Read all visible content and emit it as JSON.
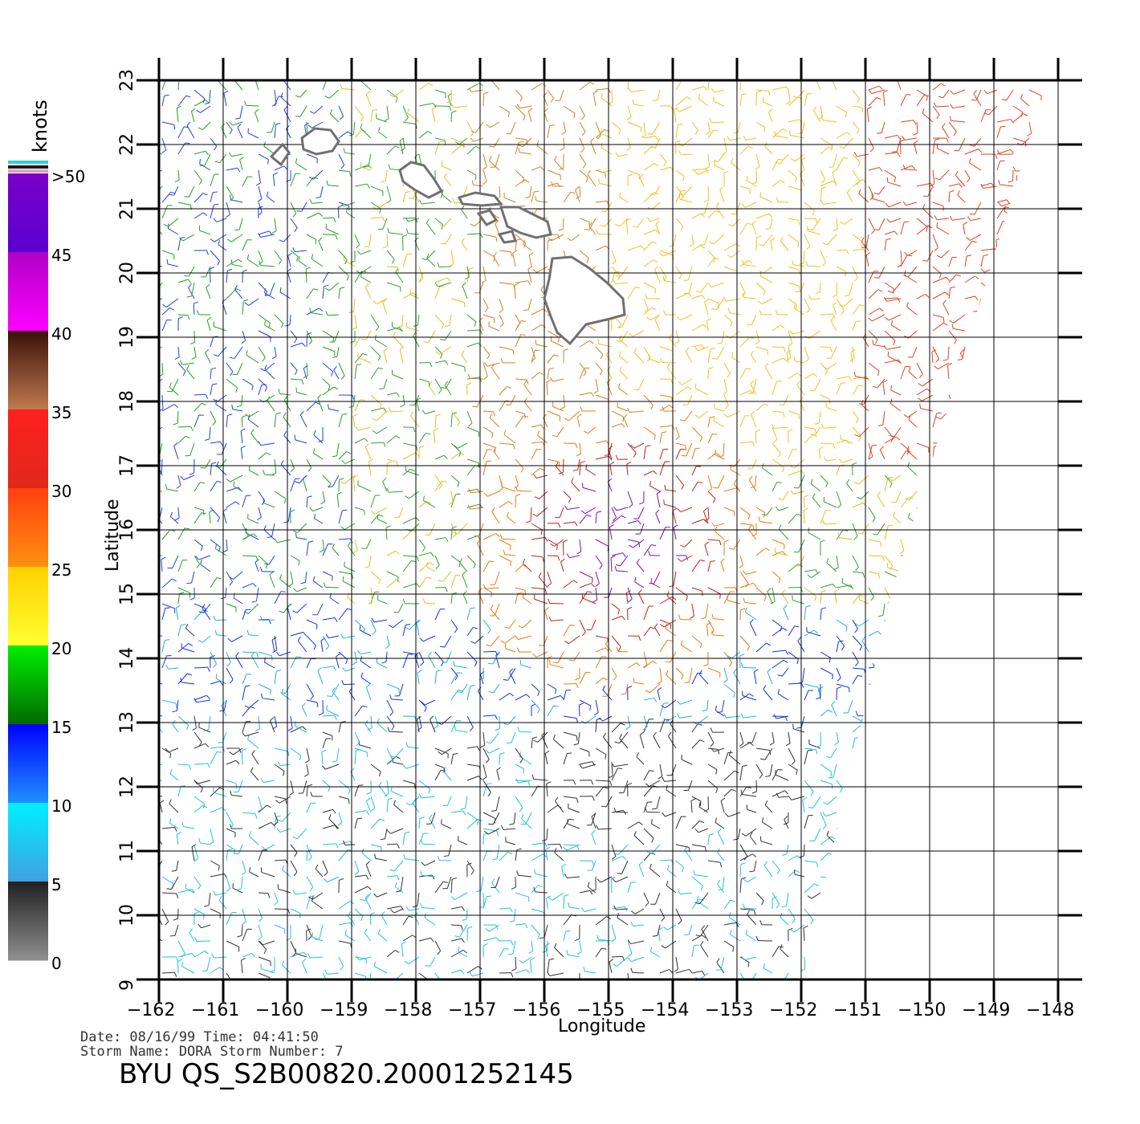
{
  "map": {
    "x_axis": {
      "title": "Longitude",
      "ticks": [
        "−162",
        "−161",
        "−160",
        "−159",
        "−158",
        "−157",
        "−156",
        "−155",
        "−154",
        "−153",
        "−152",
        "−151",
        "−150",
        "−149",
        "−148"
      ],
      "range": [
        -162,
        -148
      ]
    },
    "y_axis": {
      "title": "Latitude",
      "ticks": [
        "9",
        "10",
        "11",
        "12",
        "13",
        "14",
        "15",
        "16",
        "17",
        "18",
        "19",
        "20",
        "21",
        "22",
        "23"
      ],
      "range": [
        9,
        23
      ]
    },
    "grid": true,
    "vector_field": "wind barbs",
    "land": "Hawaiian Islands outline"
  },
  "colorbar": {
    "units": "knots",
    "labels": [
      ">50",
      "45",
      "40",
      "35",
      "30",
      "25",
      "20",
      "15",
      "10",
      "5",
      "0"
    ],
    "segments": [
      {
        "from": "#7a00c8",
        "to": "#5a00d0"
      },
      {
        "from": "#b000c8",
        "to": "#ff00ff"
      },
      {
        "from": "#3a1008",
        "to": "#c07a50"
      },
      {
        "from": "#ff2020",
        "to": "#e02818"
      },
      {
        "from": "#ff4010",
        "to": "#ff9010"
      },
      {
        "from": "#ffd000",
        "to": "#ffff30"
      },
      {
        "from": "#00f000",
        "to": "#006a00"
      },
      {
        "from": "#0000ff",
        "to": "#2090ff"
      },
      {
        "from": "#00f0ff",
        "to": "#40a0e0"
      },
      {
        "from": "#202020",
        "to": "#909090"
      }
    ]
  },
  "meta": {
    "line1": "Date: 08/16/99   Time: 04:41:50",
    "line2": "Storm Name: DORA   Storm Number: 7"
  },
  "footer": "BYU QS_S2B00820.20001252145"
}
